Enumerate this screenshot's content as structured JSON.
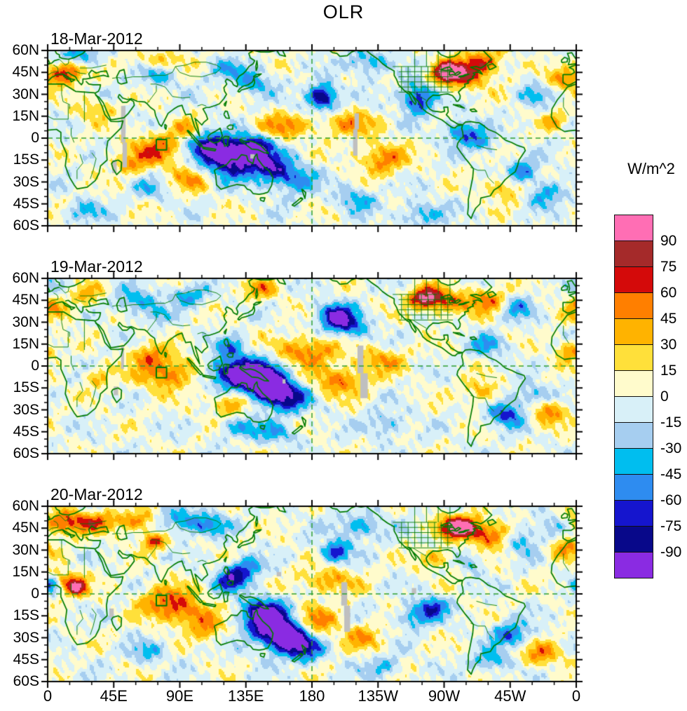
{
  "title": "OLR",
  "colorbar": {
    "label": "W/m^2",
    "tick_labels": [
      "90",
      "75",
      "60",
      "45",
      "30",
      "15",
      "0",
      "-15",
      "-30",
      "-45",
      "-60",
      "-75",
      "-90"
    ],
    "levels": [
      -90,
      -75,
      -60,
      -45,
      -30,
      -15,
      0,
      15,
      30,
      45,
      60,
      75,
      90
    ],
    "colors_low_to_high": [
      "#8A2BE2",
      "#08088A",
      "#1515CE",
      "#2E8CF0",
      "#00BEEF",
      "#A6CEF0",
      "#D8F0F8",
      "#FFFBCC",
      "#FFE03A",
      "#FFB300",
      "#FF7F00",
      "#D40A0A",
      "#A52A2A",
      "#FF6EB4"
    ],
    "missing_data_color": "#BFBFBF"
  },
  "axes": {
    "x_tick_labels": [
      "0",
      "45E",
      "90E",
      "135E",
      "180",
      "135W",
      "90W",
      "45W",
      "0"
    ],
    "y_tick_labels": [
      "60N",
      "45N",
      "30N",
      "15N",
      "0",
      "15S",
      "30S",
      "45S",
      "60S"
    ],
    "lon_range": [
      0,
      360
    ],
    "lat_range": [
      -60,
      60
    ],
    "x_major_step_deg": 45,
    "x_minor_step_deg": 15,
    "y_major_step_deg": 15,
    "y_minor_step_deg": 5
  },
  "map_style": {
    "coast_color": "#007B00",
    "dash_color": "#2F9E2F",
    "dashed_equator": 0,
    "dashed_meridian": 180,
    "region_box": {
      "lon_min": 74,
      "lon_max": 81,
      "lat_min": -8,
      "lat_max": -1
    }
  },
  "chart_data": {
    "type": "heatmap",
    "subtype": "filled_contour_anomaly_maps",
    "title": "OLR",
    "units": "W/m^2",
    "contour_levels": [
      -90,
      -75,
      -60,
      -45,
      -30,
      -15,
      0,
      15,
      30,
      45,
      60,
      75,
      90
    ],
    "legend_position": "right",
    "panels": [
      {
        "date": "18-Mar-2012",
        "seeds": [
          0.8,
          1.7,
          2.6,
          0.5,
          1.1,
          2.9,
          0.3
        ],
        "features": [
          [
            125,
            -14,
            -105,
            15,
            9
          ],
          [
            108,
            -4,
            -70,
            9,
            6
          ],
          [
            140,
            -6,
            -75,
            9,
            6
          ],
          [
            152,
            -20,
            -65,
            9,
            7
          ],
          [
            168,
            -28,
            -55,
            10,
            7
          ],
          [
            187,
            28,
            -100,
            7,
            6
          ],
          [
            252,
            27,
            -80,
            8,
            7
          ],
          [
            283,
            4,
            -65,
            8,
            6
          ],
          [
            322,
            -24,
            -60,
            8,
            6
          ],
          [
            340,
            -38,
            -45,
            9,
            6
          ],
          [
            140,
            38,
            -45,
            9,
            6
          ],
          [
            122,
            47,
            -35,
            9,
            5
          ],
          [
            75,
            45,
            -42,
            10,
            6
          ],
          [
            20,
            56,
            -50,
            11,
            6
          ],
          [
            218,
            52,
            -45,
            10,
            6
          ],
          [
            70,
            -35,
            -30,
            8,
            5
          ],
          [
            25,
            -50,
            -35,
            9,
            5
          ],
          [
            255,
            -52,
            -40,
            10,
            6
          ],
          [
            330,
            30,
            -35,
            7,
            5
          ],
          [
            210,
            -42,
            -40,
            9,
            6
          ],
          [
            297,
            -3,
            -40,
            6,
            5
          ],
          [
            12,
            46,
            80,
            9,
            6
          ],
          [
            352,
            40,
            45,
            7,
            5
          ],
          [
            75,
            -8,
            55,
            14,
            8
          ],
          [
            95,
            6,
            35,
            7,
            5
          ],
          [
            272,
            45,
            95,
            7,
            5
          ],
          [
            284,
            43,
            55,
            11,
            7
          ],
          [
            160,
            8,
            45,
            14,
            6
          ],
          [
            205,
            10,
            45,
            13,
            6
          ],
          [
            228,
            -14,
            55,
            11,
            7
          ],
          [
            312,
            -33,
            45,
            9,
            6
          ],
          [
            75,
            52,
            45,
            12,
            5
          ],
          [
            98,
            -28,
            45,
            9,
            6
          ],
          [
            297,
            52,
            55,
            10,
            6
          ],
          [
            345,
            12,
            35,
            6,
            4
          ],
          [
            32,
            20,
            32,
            9,
            5
          ],
          [
            55,
            -18,
            32,
            8,
            5
          ]
        ],
        "gray_patches": [
          [
            50,
            -3,
            53,
            22
          ],
          [
            51,
            -20,
            54,
            -3
          ],
          [
            44,
            -24,
            47,
            -15
          ],
          [
            208,
            -12,
            211,
            6
          ],
          [
            209,
            6,
            212,
            17
          ],
          [
            138,
            -14,
            141,
            -11
          ]
        ]
      },
      {
        "date": "19-Mar-2012",
        "seeds": [
          2.1,
          0.4,
          1.5,
          2.8,
          0.9,
          1.9,
          1.2
        ],
        "features": [
          [
            141,
            -7,
            -105,
            13,
            9
          ],
          [
            152,
            -16,
            -85,
            10,
            8
          ],
          [
            122,
            -4,
            -65,
            9,
            7
          ],
          [
            166,
            -22,
            -60,
            10,
            7
          ],
          [
            125,
            13,
            -45,
            7,
            5
          ],
          [
            196,
            34,
            -95,
            8,
            6
          ],
          [
            207,
            27,
            -55,
            8,
            6
          ],
          [
            313,
            -33,
            -70,
            9,
            6
          ],
          [
            330,
            -20,
            -45,
            8,
            5
          ],
          [
            60,
            44,
            -45,
            10,
            6
          ],
          [
            95,
            48,
            -45,
            9,
            5
          ],
          [
            75,
            34,
            -30,
            5,
            4
          ],
          [
            10,
            53,
            -35,
            8,
            5
          ],
          [
            320,
            40,
            -40,
            8,
            6
          ],
          [
            300,
            14,
            -45,
            8,
            5
          ],
          [
            132,
            -42,
            -40,
            10,
            5
          ],
          [
            157,
            -46,
            -40,
            9,
            5
          ],
          [
            230,
            -40,
            -35,
            9,
            6
          ],
          [
            80,
            -4,
            60,
            14,
            8
          ],
          [
            68,
            8,
            40,
            8,
            5
          ],
          [
            125,
            -25,
            48,
            10,
            6
          ],
          [
            175,
            10,
            55,
            16,
            7
          ],
          [
            198,
            -10,
            50,
            14,
            7
          ],
          [
            228,
            4,
            40,
            11,
            6
          ],
          [
            257,
            47,
            80,
            8,
            5
          ],
          [
            272,
            44,
            50,
            12,
            6
          ],
          [
            300,
            45,
            50,
            9,
            6
          ],
          [
            295,
            -18,
            40,
            8,
            6
          ],
          [
            340,
            -32,
            48,
            10,
            6
          ],
          [
            5,
            40,
            45,
            9,
            6
          ],
          [
            25,
            50,
            40,
            9,
            5
          ],
          [
            355,
            10,
            45,
            7,
            5
          ],
          [
            145,
            52,
            40,
            9,
            5
          ],
          [
            35,
            -8,
            32,
            7,
            5
          ]
        ],
        "gray_patches": [
          [
            50,
            -2,
            52,
            14
          ],
          [
            211,
            -5,
            215,
            14
          ],
          [
            213,
            -22,
            218,
            -5
          ],
          [
            45,
            -20,
            48,
            -14
          ],
          [
            160,
            -12,
            162,
            -9
          ]
        ]
      },
      {
        "date": "20-Mar-2012",
        "seeds": [
          1.4,
          2.3,
          0.2,
          1.8,
          2.5,
          0.7,
          2.0
        ],
        "features": [
          [
            155,
            -23,
            -105,
            12,
            9
          ],
          [
            166,
            -31,
            -80,
            10,
            7
          ],
          [
            146,
            -13,
            -80,
            9,
            7
          ],
          [
            126,
            10,
            -80,
            8,
            6
          ],
          [
            137,
            18,
            -50,
            7,
            5
          ],
          [
            176,
            -39,
            -50,
            9,
            6
          ],
          [
            196,
            29,
            -70,
            7,
            5
          ],
          [
            212,
            46,
            -45,
            11,
            6
          ],
          [
            262,
            -9,
            -70,
            7,
            5
          ],
          [
            250,
            -16,
            -50,
            8,
            5
          ],
          [
            316,
            -28,
            -60,
            9,
            6
          ],
          [
            302,
            -46,
            -45,
            9,
            5
          ],
          [
            322,
            36,
            -45,
            8,
            6
          ],
          [
            342,
            46,
            -35,
            8,
            5
          ],
          [
            2,
            7,
            -55,
            4,
            4
          ],
          [
            92,
            50,
            -50,
            11,
            6
          ],
          [
            112,
            47,
            -40,
            9,
            5
          ],
          [
            68,
            -40,
            -35,
            9,
            5
          ],
          [
            228,
            -50,
            -35,
            9,
            5
          ],
          [
            288,
            22,
            -32,
            6,
            5
          ],
          [
            278,
            46,
            90,
            8,
            5
          ],
          [
            290,
            44,
            55,
            10,
            6
          ],
          [
            306,
            39,
            45,
            10,
            6
          ],
          [
            10,
            49,
            60,
            11,
            6
          ],
          [
            32,
            49,
            48,
            10,
            5
          ],
          [
            352,
            31,
            45,
            8,
            5
          ],
          [
            60,
            50,
            50,
            10,
            5
          ],
          [
            72,
            36,
            65,
            6,
            4
          ],
          [
            20,
            4,
            80,
            5,
            4
          ],
          [
            13,
            9,
            45,
            8,
            5
          ],
          [
            82,
            -6,
            62,
            13,
            8
          ],
          [
            100,
            -15,
            45,
            10,
            6
          ],
          [
            190,
            9,
            42,
            14,
            6
          ],
          [
            182,
            -19,
            55,
            11,
            7
          ],
          [
            265,
            24,
            40,
            8,
            5
          ],
          [
            336,
            -41,
            48,
            10,
            6
          ],
          [
            110,
            -25,
            40,
            7,
            5
          ],
          [
            215,
            -30,
            40,
            9,
            6
          ]
        ],
        "gray_patches": [
          [
            42,
            -16,
            45,
            -10
          ],
          [
            200,
            -8,
            204,
            8
          ],
          [
            202,
            -26,
            206,
            -8
          ],
          [
            156,
            12,
            159,
            15
          ],
          [
            248,
            0,
            251,
            4
          ],
          [
            120,
            14,
            122,
            17
          ]
        ]
      }
    ]
  }
}
